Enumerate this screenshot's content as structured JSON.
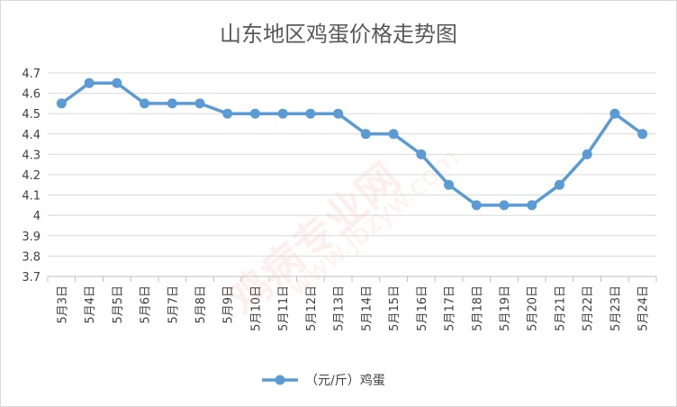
{
  "chart_data": {
    "type": "line",
    "title": "山东地区鸡蛋价格走势图",
    "xlabel": "",
    "ylabel": "",
    "categories": [
      "5月3日",
      "5月4日",
      "5月5日",
      "5月6日",
      "5月7日",
      "5月8日",
      "5月9日",
      "5月10日",
      "5月11日",
      "5月12日",
      "5月13日",
      "5月14日",
      "5月15日",
      "5月16日",
      "5月17日",
      "5月18日",
      "5月19日",
      "5月20日",
      "5月21日",
      "5月22日",
      "5月23日",
      "5月24日"
    ],
    "series": [
      {
        "name": "（元/斤）鸡蛋",
        "color": "#5b9bd5",
        "values": [
          4.55,
          4.65,
          4.65,
          4.55,
          4.55,
          4.55,
          4.5,
          4.5,
          4.5,
          4.5,
          4.5,
          4.4,
          4.4,
          4.3,
          4.15,
          4.05,
          4.05,
          4.05,
          4.15,
          4.3,
          4.5,
          4.4
        ]
      }
    ],
    "ylim": [
      3.7,
      4.7
    ],
    "yticks": [
      "3.7",
      "3.8",
      "3.9",
      "4",
      "4.1",
      "4.2",
      "4.3",
      "4.4",
      "4.5",
      "4.6",
      "4.7"
    ],
    "grid": true,
    "legend": "bottom"
  },
  "watermark": {
    "text": "鸡病专业网",
    "url": "www.jbzyw.com"
  }
}
